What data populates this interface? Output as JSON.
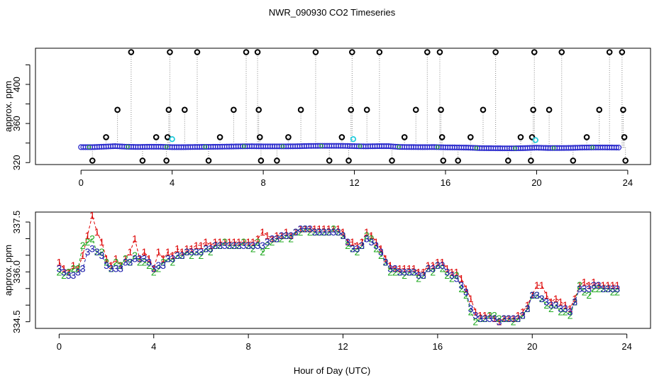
{
  "chart_data": [
    {
      "type": "scatter",
      "title": "NWR_090930  CO2 Timeseries",
      "xlabel": "",
      "ylabel": "approx. ppm",
      "xlim": [
        -2,
        25
      ],
      "ylim": [
        318,
        437
      ],
      "xticks": [
        0,
        4,
        8,
        12,
        16,
        20,
        24
      ],
      "yticks": [
        320,
        360,
        400
      ],
      "extra_ytick_marks": [
        340,
        380,
        420
      ],
      "grid": false,
      "legend": "none",
      "series": [
        {
          "name": "baseline",
          "marker": "blue-circle",
          "note": "dense blue circles near 336 ppm, one every ~0.1 h",
          "x": [
            0,
            0.5,
            1,
            1.5,
            2,
            2.5,
            3,
            3.5,
            4,
            4.5,
            5,
            5.5,
            6,
            6.5,
            7,
            7.5,
            8,
            8.5,
            9,
            9.5,
            10,
            10.5,
            11,
            11.5,
            12,
            12.5,
            13,
            13.5,
            14,
            14.5,
            15,
            15.5,
            16,
            16.5,
            17,
            17.5,
            18,
            18.5,
            19,
            19.5,
            20,
            20.5,
            21,
            21.5,
            22,
            22.5,
            23,
            23.5
          ],
          "y": [
            335.8,
            335.8,
            336.3,
            336.8,
            336.2,
            336,
            336.2,
            336.2,
            335.8,
            335.8,
            336,
            336.1,
            336.2,
            336.4,
            336.6,
            336.7,
            336.6,
            336.6,
            336.6,
            336.7,
            337,
            337.1,
            337.1,
            337.1,
            336.8,
            336.6,
            336.8,
            336.8,
            336,
            335.9,
            335.8,
            335.9,
            335.6,
            335.5,
            335.3,
            334.8,
            334.7,
            334.6,
            334.6,
            334.8,
            335.3,
            334.9,
            334.9,
            335,
            335.4,
            335.5,
            335.5,
            335.4
          ]
        },
        {
          "name": "spikes",
          "marker": "black-open-circle",
          "x": [
            0.5,
            1.1,
            1.6,
            2.2,
            2.7,
            3.3,
            3.75,
            3.8,
            3.85,
            3.9,
            4.55,
            5.1,
            5.6,
            6.1,
            6.7,
            7.25,
            7.75,
            7.8,
            7.85,
            7.9,
            8.6,
            9.1,
            9.65,
            10.3,
            10.9,
            11.45,
            11.75,
            11.85,
            11.9,
            12.55,
            13.1,
            13.65,
            14.2,
            14.7,
            15.2,
            15.75,
            15.8,
            15.85,
            15.9,
            16.55,
            17.1,
            17.65,
            18.2,
            18.75,
            19.3,
            19.75,
            19.8,
            19.85,
            19.9,
            20.55,
            21.1,
            21.6,
            22.2,
            22.75,
            23.2,
            23.75,
            23.8,
            23.85,
            23.9
          ],
          "y": [
            322,
            346,
            374,
            433,
            322,
            346,
            322,
            346,
            374,
            433,
            374,
            433,
            322,
            346,
            374,
            433,
            433,
            374,
            346,
            322,
            322,
            346,
            374,
            433,
            322,
            346,
            322,
            374,
            433,
            374,
            433,
            322,
            346,
            374,
            433,
            433,
            374,
            346,
            322,
            322,
            346,
            374,
            433,
            322,
            346,
            322,
            346,
            374,
            433,
            374,
            433,
            322,
            346,
            374,
            433,
            433,
            374,
            346,
            322
          ]
        },
        {
          "name": "cyan-markers",
          "marker": "cyan-circle",
          "x": [
            4.0,
            11.95,
            19.95
          ],
          "y": [
            344,
            344,
            343
          ]
        }
      ]
    },
    {
      "type": "line",
      "title": "",
      "xlabel": "Hour of Day (UTC)",
      "ylabel": "approx. ppm",
      "xlim": [
        -1,
        25
      ],
      "ylim": [
        334.3,
        337.8
      ],
      "xticks": [
        0,
        4,
        8,
        12,
        16,
        20,
        24
      ],
      "yticks": [
        334.5,
        336.0,
        337.5
      ],
      "ytick_labels": [
        "334.5",
        "336.0",
        "337.5"
      ],
      "extra_ytick_marks": [
        335.0,
        335.5,
        336.5,
        337.0
      ],
      "grid": false,
      "legend": "none",
      "x": [
        0,
        0.2,
        0.4,
        0.6,
        0.8,
        1.0,
        1.2,
        1.4,
        1.6,
        1.8,
        2.0,
        2.2,
        2.4,
        2.6,
        2.8,
        3.0,
        3.2,
        3.4,
        3.6,
        3.8,
        4.0,
        4.2,
        4.4,
        4.6,
        4.8,
        5.0,
        5.2,
        5.4,
        5.6,
        5.8,
        6.0,
        6.2,
        6.4,
        6.6,
        6.8,
        7.0,
        7.2,
        7.4,
        7.6,
        7.8,
        8.0,
        8.2,
        8.4,
        8.6,
        8.8,
        9.0,
        9.2,
        9.4,
        9.6,
        9.8,
        10.0,
        10.2,
        10.4,
        10.6,
        10.8,
        11.0,
        11.2,
        11.4,
        11.6,
        11.8,
        12.0,
        12.2,
        12.4,
        12.6,
        12.8,
        13.0,
        13.2,
        13.4,
        13.6,
        13.8,
        14.0,
        14.2,
        14.4,
        14.6,
        14.8,
        15.0,
        15.2,
        15.4,
        15.6,
        15.8,
        16.0,
        16.2,
        16.4,
        16.6,
        16.8,
        17.0,
        17.2,
        17.4,
        17.6,
        17.8,
        18.0,
        18.2,
        18.4,
        18.6,
        18.8,
        19.0,
        19.2,
        19.4,
        19.6,
        19.8,
        20.0,
        20.2,
        20.4,
        20.6,
        20.8,
        21.0,
        21.2,
        21.4,
        21.6,
        21.8,
        22.0,
        22.2,
        22.4,
        22.6,
        22.8,
        23.0,
        23.2,
        23.4,
        23.6
      ],
      "series": [
        {
          "name": "1",
          "label_char": "1",
          "color": "#dd0000",
          "values": [
            336.3,
            336.1,
            336.0,
            336.2,
            336.1,
            336.5,
            337.1,
            337.7,
            337.2,
            336.9,
            336.4,
            336.2,
            336.4,
            336.2,
            336.4,
            336.6,
            337.0,
            336.4,
            336.6,
            336.4,
            336.1,
            336.6,
            336.4,
            336.6,
            336.5,
            336.7,
            336.6,
            336.7,
            336.7,
            336.8,
            336.8,
            336.9,
            336.8,
            336.9,
            336.9,
            336.9,
            336.9,
            336.9,
            336.9,
            336.9,
            336.9,
            336.9,
            337.0,
            337.2,
            337.1,
            337.0,
            337.1,
            337.1,
            337.2,
            337.1,
            337.2,
            337.3,
            337.3,
            337.3,
            337.3,
            337.3,
            337.3,
            337.3,
            337.3,
            337.3,
            337.2,
            336.9,
            336.9,
            336.8,
            336.9,
            337.2,
            337.1,
            336.9,
            336.7,
            336.4,
            336.2,
            336.1,
            336.1,
            336.1,
            336.1,
            336.1,
            336.0,
            336.0,
            336.2,
            336.2,
            336.3,
            336.3,
            336.1,
            336.0,
            336.0,
            335.8,
            335.5,
            335.2,
            334.8,
            334.7,
            334.7,
            334.7,
            334.6,
            334.5,
            334.6,
            334.6,
            334.6,
            334.7,
            334.8,
            335.0,
            335.3,
            335.6,
            335.6,
            335.3,
            335.1,
            335.2,
            335.1,
            335.0,
            334.9,
            335.2,
            335.6,
            335.7,
            335.6,
            335.7,
            335.6,
            335.6,
            335.6,
            335.6,
            335.6
          ]
        },
        {
          "name": "2",
          "label_char": "2",
          "color": "#22aa22",
          "values": [
            336.0,
            335.9,
            336.0,
            336.1,
            336.1,
            336.8,
            336.9,
            337.0,
            336.6,
            336.6,
            336.3,
            336.1,
            336.3,
            336.2,
            336.4,
            336.3,
            336.5,
            336.3,
            336.3,
            336.2,
            336.0,
            336.1,
            336.3,
            336.4,
            336.3,
            336.5,
            336.5,
            336.6,
            336.5,
            336.6,
            336.5,
            336.7,
            336.6,
            336.8,
            336.8,
            336.9,
            336.8,
            336.8,
            336.8,
            336.9,
            336.8,
            336.7,
            336.9,
            336.6,
            336.8,
            336.9,
            337.0,
            337.0,
            337.1,
            337.0,
            337.2,
            337.2,
            337.3,
            337.2,
            337.2,
            337.2,
            337.2,
            337.2,
            337.3,
            337.2,
            337.1,
            336.8,
            336.7,
            336.6,
            336.8,
            337.1,
            337.0,
            336.7,
            336.5,
            336.3,
            336.0,
            336.0,
            336.0,
            335.9,
            336.0,
            336.0,
            335.8,
            335.9,
            336.1,
            336.0,
            336.2,
            336.1,
            335.9,
            335.8,
            335.9,
            335.5,
            335.3,
            334.8,
            334.5,
            334.6,
            334.6,
            334.7,
            334.7,
            334.6,
            334.6,
            334.6,
            334.5,
            334.6,
            334.7,
            334.9,
            335.3,
            335.3,
            335.2,
            335.0,
            334.9,
            335.0,
            334.8,
            334.8,
            334.7,
            335.1,
            335.6,
            335.4,
            335.3,
            335.5,
            335.5,
            335.5,
            335.5,
            335.4,
            335.4
          ]
        },
        {
          "name": "3",
          "label_char": "3",
          "color": "#1a1aaa",
          "values": [
            336.1,
            336.0,
            335.9,
            335.9,
            336.0,
            336.1,
            336.6,
            336.7,
            336.6,
            336.5,
            336.2,
            336.1,
            336.1,
            336.1,
            336.3,
            336.3,
            336.4,
            336.4,
            336.4,
            336.3,
            336.1,
            336.2,
            336.2,
            336.4,
            336.4,
            336.5,
            336.5,
            336.6,
            336.6,
            336.6,
            336.6,
            336.7,
            336.7,
            336.8,
            336.8,
            336.8,
            336.8,
            336.8,
            336.8,
            336.8,
            336.8,
            336.8,
            336.8,
            336.8,
            336.9,
            337.0,
            337.0,
            337.1,
            337.1,
            337.1,
            337.2,
            337.3,
            337.3,
            337.3,
            337.2,
            337.2,
            337.2,
            337.2,
            337.2,
            337.2,
            337.1,
            336.9,
            336.7,
            336.7,
            336.8,
            337.0,
            336.9,
            336.8,
            336.6,
            336.3,
            336.1,
            336.1,
            336.0,
            336.0,
            336.0,
            336.0,
            335.9,
            335.9,
            336.1,
            336.1,
            336.2,
            336.2,
            336.0,
            335.9,
            335.8,
            335.6,
            335.4,
            334.9,
            334.7,
            334.6,
            334.6,
            334.6,
            334.6,
            334.5,
            334.6,
            334.6,
            334.6,
            334.6,
            334.7,
            334.9,
            335.3,
            335.3,
            335.2,
            335.1,
            335.0,
            335.0,
            334.9,
            334.9,
            334.8,
            335.1,
            335.5,
            335.5,
            335.5,
            335.6,
            335.6,
            335.5,
            335.5,
            335.5,
            335.5
          ]
        }
      ]
    }
  ]
}
